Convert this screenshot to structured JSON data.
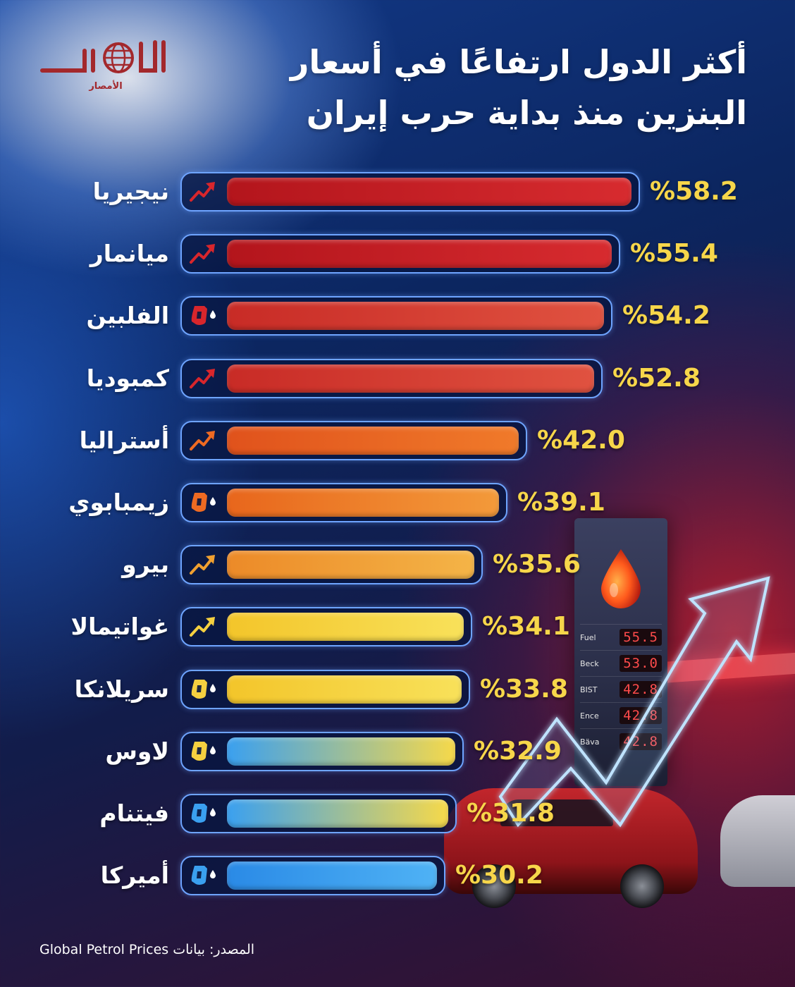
{
  "brand": {
    "logo_text": "الأمصار"
  },
  "title": {
    "line1": "أكثر الدول ارتفاعًا في أسعار",
    "line2": "البنزين منذ بداية حرب إيران"
  },
  "source": "المصدر: بيانات Global Petrol Prices",
  "pump_display": [
    {
      "label": "Fuel",
      "value": "55.5"
    },
    {
      "label": "Beck",
      "value": "53.0"
    },
    {
      "label": "BIST",
      "value": "42.8"
    },
    {
      "label": "Ence",
      "value": "42.8"
    },
    {
      "label": "Bäva",
      "value": "42.8"
    }
  ],
  "chart_data": {
    "type": "bar",
    "orientation": "horizontal",
    "value_suffix": "%",
    "categories": [
      "نيجيريا",
      "ميانمار",
      "الفلبين",
      "كمبوديا",
      "أستراليا",
      "زيمبابوي",
      "بيرو",
      "غواتيمالا",
      "سريلانكا",
      "لاوس",
      "فيتنام",
      "أميركا"
    ],
    "values": [
      58.2,
      55.4,
      54.2,
      52.8,
      42.0,
      39.1,
      35.6,
      34.1,
      33.8,
      32.9,
      31.8,
      30.2
    ],
    "labels": [
      "%58.2",
      "%55.4",
      "%54.2",
      "%52.8",
      "%42.0",
      "%39.1",
      "%35.6",
      "%34.1",
      "%33.8",
      "%32.9",
      "%31.8",
      "%30.2"
    ],
    "icons": [
      "trend-up-icon",
      "trend-up-icon",
      "fuel-nozzle-icon",
      "trend-up-icon",
      "trend-up-icon",
      "fuel-nozzle-icon",
      "trend-up-icon",
      "trend-up-icon",
      "fuel-nozzle-icon",
      "fuel-nozzle-icon",
      "fuel-nozzle-icon",
      "fuel-nozzle-icon"
    ],
    "colors": [
      [
        "#b3151c",
        "#d72b2f"
      ],
      [
        "#b3151c",
        "#d72b2f"
      ],
      [
        "#c82b26",
        "#e05240"
      ],
      [
        "#c82b26",
        "#e05240"
      ],
      [
        "#e0521c",
        "#f07a2a"
      ],
      [
        "#e8661c",
        "#f39a3a"
      ],
      [
        "#ec8a28",
        "#f4b447"
      ],
      [
        "#f3c52a",
        "#f8e15a"
      ],
      [
        "#f3c52a",
        "#f8e15a"
      ],
      [
        "#3aa0f0",
        "#f6d94a"
      ],
      [
        "#3aa0f0",
        "#f6d94a"
      ],
      [
        "#2a8ae6",
        "#4fb2f5"
      ]
    ],
    "icon_colors": [
      "#d8262c",
      "#d8262c",
      "#d8262c",
      "#d8262c",
      "#ee6a22",
      "#ee6a22",
      "#f0a030",
      "#f5d040",
      "#f5d040",
      "#f5d040",
      "#3aa0f0",
      "#3aa0f0"
    ],
    "xlim": [
      0,
      58.2
    ]
  }
}
